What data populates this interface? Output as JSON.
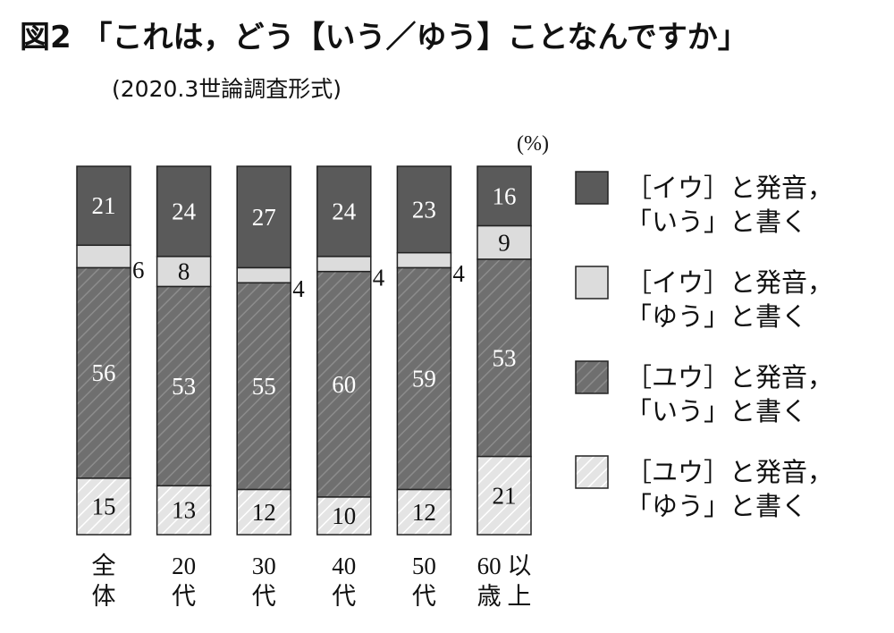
{
  "title": "図2 「これは，どう【いう／ゆう】ことなんですか」",
  "subtitle": "(2020.3世論調査形式)",
  "chart_data": {
    "type": "bar",
    "stacked": true,
    "unit": "(%)",
    "categories": [
      {
        "line1": "全",
        "line2": "体"
      },
      {
        "line1": "20",
        "line2": "代"
      },
      {
        "line1": "30",
        "line2": "代"
      },
      {
        "line1": "40",
        "line2": "代"
      },
      {
        "line1": "50",
        "line2": "代"
      },
      {
        "line1": "60 以",
        "line2": "歳 上"
      }
    ],
    "series": [
      {
        "line1": "［イウ］と発音，",
        "line2": "「いう」と書く",
        "values": [
          21,
          24,
          27,
          24,
          23,
          16
        ]
      },
      {
        "line1": "［イウ］と発音，",
        "line2": "「ゆう」と書く",
        "values": [
          6,
          8,
          4,
          4,
          4,
          9
        ]
      },
      {
        "line1": "［ユウ］と発音，",
        "line2": "「いう」と書く",
        "values": [
          56,
          53,
          55,
          60,
          59,
          53
        ]
      },
      {
        "line1": "［ユウ］と発音，",
        "line2": "「ゆう」と書く",
        "values": [
          15,
          13,
          12,
          10,
          12,
          21
        ]
      }
    ],
    "colors": [
      "#5a5a5a",
      "#dcdcdc",
      "#6f6f6f",
      "#e4e4e4"
    ],
    "hatched": [
      false,
      false,
      true,
      true
    ],
    "label_colors": [
      "#ffffff",
      "#111111",
      "#ffffff",
      "#111111"
    ],
    "ylim": [
      0,
      100
    ]
  }
}
